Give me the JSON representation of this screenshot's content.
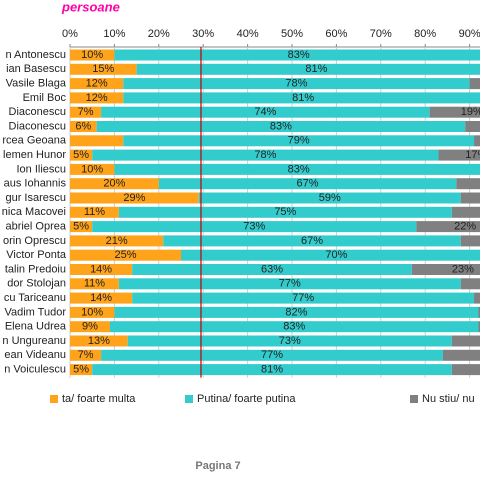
{
  "chart_data": {
    "type": "stacked_barh",
    "title": "persoane",
    "footer": "Pagina 7",
    "categories": [
      "n Antonescu",
      "ian Basescu",
      "Vasile Blaga",
      "Emil Boc",
      "Diaconescu",
      "Diaconescu",
      "rcea Geoana",
      "lemen Hunor",
      "Ion Iliescu",
      "aus Iohannis",
      "gur Isarescu",
      "nica Macovei",
      "abriel Oprea",
      "orin Oprescu",
      "Victor Ponta",
      "talin Predoiu",
      "dor Stolojan",
      "cu Tariceanu",
      "Vadim Tudor",
      "Elena Udrea",
      "n Ungureanu",
      "ean Videanu",
      "n Voiculescu"
    ],
    "series": [
      {
        "name": "ta/ foarte multa",
        "color": "#ffa31a",
        "values": [
          10,
          15,
          12,
          12,
          7,
          6,
          12,
          5,
          10,
          20,
          29,
          11,
          5,
          21,
          25,
          14,
          11,
          14,
          10,
          9,
          13,
          7,
          5
        ],
        "value_labels": [
          "10%",
          "15%",
          "12%",
          "12%",
          "7%",
          "6%",
          null,
          "5%",
          "10%",
          "20%",
          "29%",
          "11%",
          "5%",
          "21%",
          "25%",
          "14%",
          "11%",
          "14%",
          "10%",
          "9%",
          "13%",
          "7%",
          "5%"
        ]
      },
      {
        "name": "Putina/ foarte putina",
        "color": "#33cccc",
        "values": [
          83,
          81,
          78,
          81,
          74,
          83,
          79,
          78,
          83,
          67,
          59,
          75,
          73,
          67,
          70,
          63,
          77,
          77,
          82,
          83,
          73,
          77,
          81
        ],
        "value_labels": [
          "83%",
          "81%",
          "78%",
          "81%",
          "74%",
          "83%",
          "79%",
          "78%",
          "83%",
          "67%",
          "59%",
          "75%",
          "73%",
          "67%",
          "70%",
          "63%",
          "77%",
          "77%",
          "82%",
          "83%",
          "73%",
          "77%",
          "81%"
        ]
      },
      {
        "name": "Nu stiu/ nu",
        "color": "#808080",
        "values": [
          7,
          4,
          10,
          7,
          19,
          11,
          9,
          17,
          7,
          13,
          12,
          14,
          22,
          12,
          5,
          23,
          12,
          9,
          8,
          8,
          14,
          16,
          14
        ],
        "value_labels": [
          null,
          null,
          null,
          null,
          "19%",
          null,
          null,
          "17%",
          null,
          null,
          null,
          null,
          "22%",
          null,
          null,
          "23%",
          null,
          null,
          null,
          null,
          null,
          null,
          null
        ]
      }
    ],
    "xlim": [
      0,
      100
    ],
    "xticks": [
      {
        "value": 0,
        "label": "0%"
      },
      {
        "value": 10,
        "label": "10%"
      },
      {
        "value": 20,
        "label": "20%"
      },
      {
        "value": 30,
        "label": "30%"
      },
      {
        "value": 40,
        "label": "40%"
      },
      {
        "value": 50,
        "label": "50%"
      },
      {
        "value": 60,
        "label": "60%"
      },
      {
        "value": 70,
        "label": "70%"
      },
      {
        "value": 80,
        "label": "80%"
      },
      {
        "value": 90,
        "label": "90%"
      }
    ],
    "grid": true,
    "reference_line": {
      "value": 29.5,
      "color": "#c00000"
    }
  }
}
